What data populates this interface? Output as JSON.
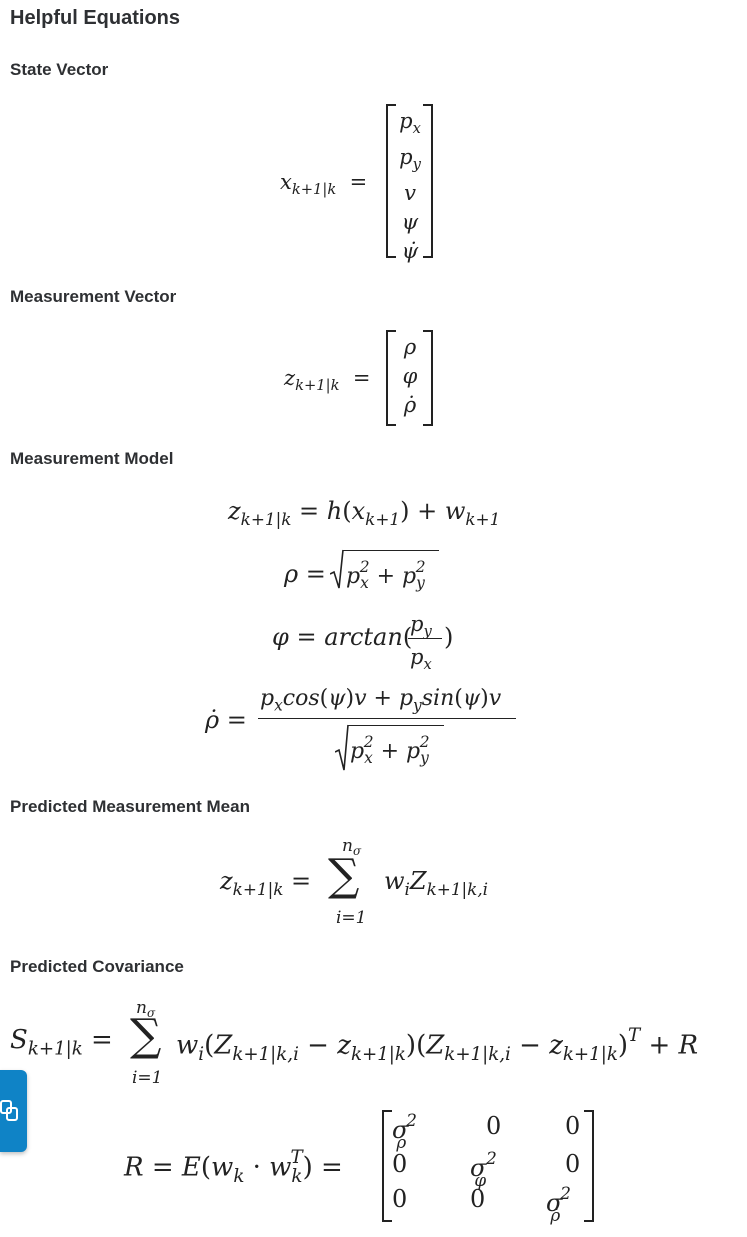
{
  "page": {
    "title": "Helpful Equations"
  },
  "sections": {
    "state_vector": {
      "heading": "State Vector"
    },
    "measurement_vector": {
      "heading": "Measurement Vector"
    },
    "measurement_model": {
      "heading": "Measurement Model"
    },
    "predicted_mean": {
      "heading": "Predicted Measurement Mean"
    },
    "predicted_covariance": {
      "heading": "Predicted Covariance"
    }
  },
  "equations": {
    "state_vector": "x_{k+1|k} = [p_x, p_y, v, ψ, ψ̇]",
    "measurement_vector": "z_{k+1|k} = [ρ, φ, ρ̇]",
    "measurement_model": [
      "z_{k+1|k} = h(x_{k+1}) + w_{k+1}",
      "ρ = √(p_x² + p_y²)",
      "φ = arctan(p_y / p_x)",
      "ρ̇ = (p_x cos(ψ)v + p_y sin(ψ)v) / √(p_x² + p_y²)"
    ],
    "predicted_mean": "z_{k+1|k} = Σ_{i=1}^{n_σ} w_i Z_{k+1|k,i}",
    "predicted_covariance": "S_{k+1|k} = Σ_{i=1}^{n_σ} w_i (Z_{k+1|k,i} − z_{k+1|k})(Z_{k+1|k,i} − z_{k+1|k})^T + R",
    "noise_covariance": "R = E(w_k · w_k^T) = [[σ_ρ², 0, 0], [0, σ_φ², 0], [0, 0, σ_ρ̇²]]"
  },
  "side_button": {
    "icon": "copy-icon"
  },
  "colors": {
    "accent": "#0f83c6",
    "heading": "#2e3033"
  }
}
